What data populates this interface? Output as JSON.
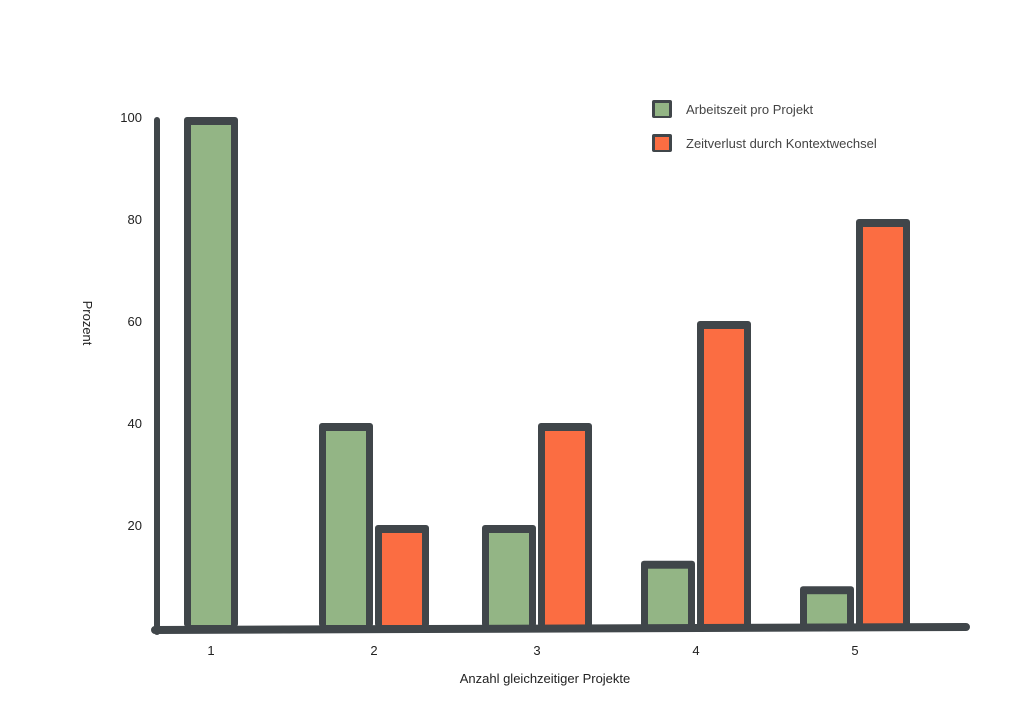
{
  "chart_data": {
    "type": "bar",
    "categories": [
      "1",
      "2",
      "3",
      "4",
      "5"
    ],
    "series": [
      {
        "name": "Arbeitszeit pro Projekt",
        "values": [
          100,
          40,
          20,
          13,
          8
        ],
        "color": "#93b585"
      },
      {
        "name": "Zeitverlust durch Kontextwechsel",
        "values": [
          null,
          20,
          40,
          60,
          80
        ],
        "color": "#fb6d42"
      }
    ],
    "title": "",
    "xlabel": "Anzahl gleichzeitiger Projekte",
    "ylabel": "Prozent",
    "yticks": [
      20,
      40,
      60,
      80,
      100
    ],
    "ylim": [
      0,
      100
    ],
    "grid": false,
    "legend_position": "top-right",
    "outline_color": "#40464a"
  }
}
